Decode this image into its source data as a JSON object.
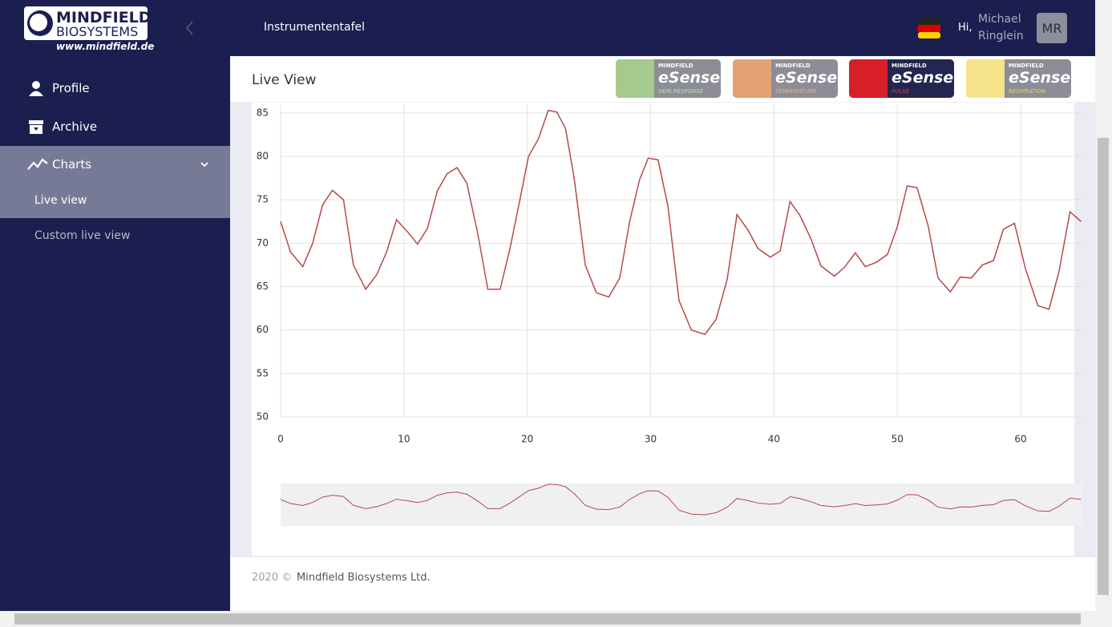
{
  "logo": {
    "line1": "MINDFIELD",
    "line2": "BIOSYSTEMS",
    "url": "www.mindfield.de"
  },
  "header": {
    "title": "Instrumententafel",
    "greeting": "Hi,",
    "first_name": "Michael",
    "last_name": "Ringlein",
    "initials": "MR"
  },
  "sidebar": {
    "menu": [
      {
        "label": "Profile"
      },
      {
        "label": "Archive"
      },
      {
        "label": "Charts"
      }
    ],
    "submenu": [
      {
        "label": "Live view"
      },
      {
        "label": "Custom live view"
      }
    ]
  },
  "page": {
    "title": "Live View",
    "badges": [
      {
        "brand": "MINDFIELD",
        "name": "eSense",
        "sub": "SKIN RESPONSE"
      },
      {
        "brand": "MINDFIELD",
        "name": "eSense",
        "sub": "TEMPERATURE"
      },
      {
        "brand": "MINDFIELD",
        "name": "eSense",
        "sub": "PULSE"
      },
      {
        "brand": "MINDFIELD",
        "name": "eSense",
        "sub": "RESPIRATION"
      }
    ]
  },
  "chart_data": {
    "type": "line",
    "color": "#b5494a",
    "grid": true,
    "x": [
      0,
      0.8,
      1.8,
      2.6,
      3.4,
      4.2,
      5.1,
      5.9,
      6.9,
      7.8,
      8.6,
      9.4,
      10.3,
      11.1,
      11.9,
      12.7,
      13.5,
      14.3,
      15.1,
      16,
      16.8,
      17.8,
      18.6,
      19.4,
      20.1,
      20.9,
      21.7,
      22.4,
      23.1,
      23.8,
      24.7,
      25.6,
      26.6,
      27.5,
      28.3,
      29.1,
      29.8,
      30.6,
      31.4,
      32.3,
      33.3,
      34.4,
      35.3,
      36.2,
      37,
      37.9,
      38.7,
      39.7,
      40.5,
      41.3,
      42.1,
      43,
      43.8,
      44.9,
      45.7,
      46.6,
      47.4,
      48.3,
      49.2,
      50,
      50.8,
      51.6,
      52.5,
      53.3,
      54.3,
      55.1,
      56,
      56.9,
      57.8,
      58.6,
      59.5,
      60.4,
      61.4,
      62.3,
      63.1,
      64,
      64.9
    ],
    "values": [
      72.5,
      69,
      67.3,
      70,
      74.4,
      76.1,
      75,
      67.5,
      64.7,
      66.4,
      69,
      72.7,
      71.3,
      69.9,
      71.7,
      76,
      78,
      78.7,
      76.9,
      71,
      64.7,
      64.7,
      69.4,
      75,
      80,
      82,
      85.3,
      85.1,
      83.2,
      77.5,
      67.5,
      64.3,
      63.8,
      66,
      72.5,
      77.3,
      79.8,
      79.6,
      74.3,
      63.4,
      60,
      59.5,
      61.2,
      65.8,
      73.3,
      71.5,
      69.4,
      68.4,
      69.1,
      74.8,
      73.2,
      70.5,
      67.4,
      66.2,
      67.2,
      68.9,
      67.3,
      67.8,
      68.7,
      71.9,
      76.6,
      76.4,
      72,
      66,
      64.4,
      66.1,
      66,
      67.5,
      68,
      71.6,
      72.3,
      67,
      62.8,
      62.4,
      66.7,
      73.6,
      72.5
    ],
    "xlim": [
      0,
      65
    ],
    "xticks": [
      0,
      10,
      20,
      30,
      40,
      50,
      60
    ],
    "ylim": [
      50,
      86
    ],
    "yticks": [
      50,
      55,
      60,
      65,
      70,
      75,
      80,
      85
    ]
  },
  "footer": {
    "year": "2020 ©",
    "company": "Mindfield Biosystems Ltd."
  }
}
